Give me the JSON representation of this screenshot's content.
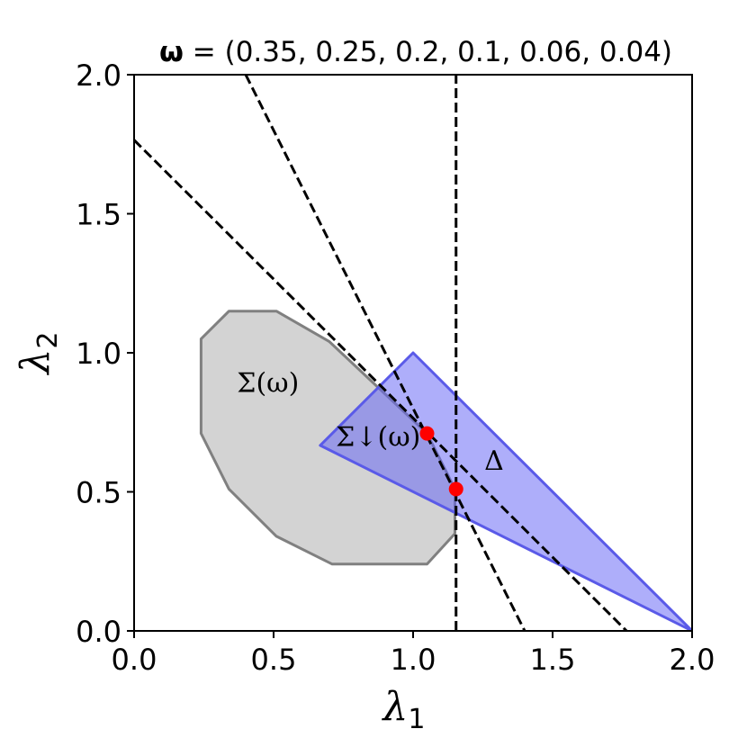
{
  "chart_data": {
    "type": "region-plot",
    "title": {
      "bold_symbol": "ω",
      "text": " = (0.35, 0.25, 0.2, 0.1, 0.06, 0.04)"
    },
    "xlabel": {
      "symbol": "λ",
      "sub": "1"
    },
    "ylabel": {
      "symbol": "λ",
      "sub": "2"
    },
    "xlim": [
      0,
      2
    ],
    "ylim": [
      0,
      2
    ],
    "xticks": [
      0.0,
      0.5,
      1.0,
      1.5,
      2.0
    ],
    "yticks": [
      0.0,
      0.5,
      1.0,
      1.5,
      2.0
    ],
    "xtick_labels": [
      "0.0",
      "0.5",
      "1.0",
      "1.5",
      "2.0"
    ],
    "ytick_labels": [
      "0.0",
      "0.5",
      "1.0",
      "1.5",
      "2.0"
    ],
    "grid": false,
    "regions": [
      {
        "label": "Σ(ω)",
        "fill": "#d3d3d3",
        "stroke": "#808080",
        "points": [
          [
            0.34,
            1.15
          ],
          [
            0.51,
            1.15
          ],
          [
            0.7,
            1.04
          ],
          [
            1.05,
            0.71
          ],
          [
            1.15,
            0.51
          ],
          [
            1.15,
            0.35
          ],
          [
            1.05,
            0.24
          ],
          [
            0.71,
            0.24
          ],
          [
            0.51,
            0.34
          ],
          [
            0.34,
            0.51
          ],
          [
            0.24,
            0.71
          ],
          [
            0.24,
            1.05
          ]
        ]
      },
      {
        "label": "Δ",
        "fill": "rgba(100,100,245,0.52)",
        "stroke": "#5a5ae8",
        "points": [
          [
            1.0,
            1.0
          ],
          [
            2.0,
            0.0
          ],
          [
            0.667,
            0.667
          ]
        ]
      }
    ],
    "subregion_label": "Σ↓(ω)",
    "lines": [
      {
        "style": "dashed",
        "points": [
          [
            0.0,
            1.765
          ],
          [
            1.765,
            0.0
          ]
        ]
      },
      {
        "style": "dashed",
        "points": [
          [
            0.4,
            2.0
          ],
          [
            1.4,
            0.0
          ]
        ]
      },
      {
        "style": "dashed",
        "points": [
          [
            1.154,
            0.0
          ],
          [
            1.154,
            2.0
          ]
        ]
      }
    ],
    "points": [
      {
        "x": 1.05,
        "y": 0.71,
        "color": "#ff0000"
      },
      {
        "x": 1.154,
        "y": 0.51,
        "color": "#ff0000"
      }
    ],
    "label_anchors": [
      {
        "text": "Σ(ω)",
        "x": 0.48,
        "y": 0.86
      },
      {
        "text": "Σ↓(ω)",
        "x": 0.875,
        "y": 0.665
      },
      {
        "text": "Δ",
        "x": 1.29,
        "y": 0.58
      }
    ]
  }
}
